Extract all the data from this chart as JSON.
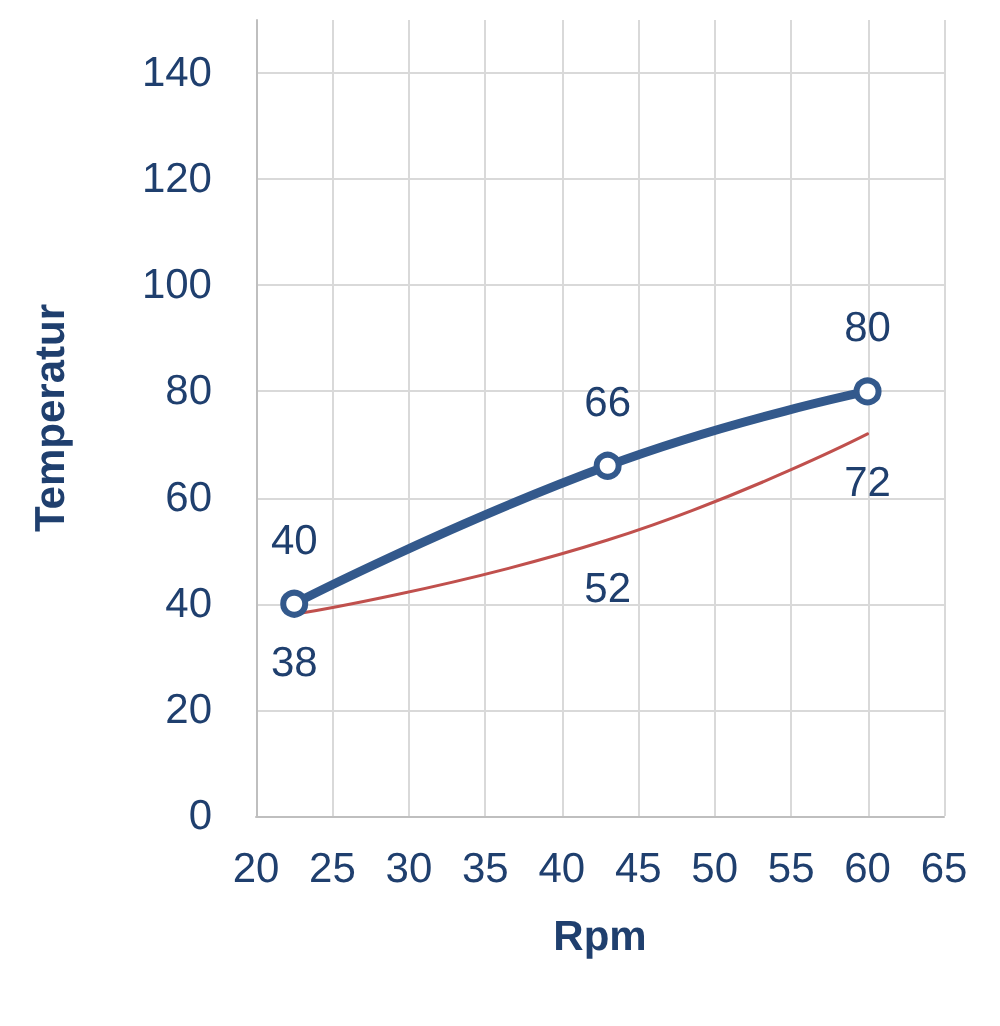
{
  "chart_data": {
    "type": "line",
    "xlabel": "Rpm",
    "ylabel": "Temperatur",
    "x": [
      22.5,
      43,
      60
    ],
    "series": [
      {
        "color": "#33598c",
        "values": [
          40,
          66,
          80
        ],
        "marker": "circle"
      },
      {
        "color": "#c0504d",
        "values": [
          38,
          52,
          72
        ],
        "marker": "none"
      }
    ],
    "xlim": [
      20,
      65
    ],
    "xticks": [
      20,
      25,
      30,
      35,
      40,
      45,
      50,
      55,
      60,
      65
    ],
    "ylim": [
      0,
      150
    ],
    "yticks": [
      0,
      20,
      40,
      60,
      80,
      100,
      120,
      140
    ],
    "grid": true,
    "data_labels": true
  }
}
